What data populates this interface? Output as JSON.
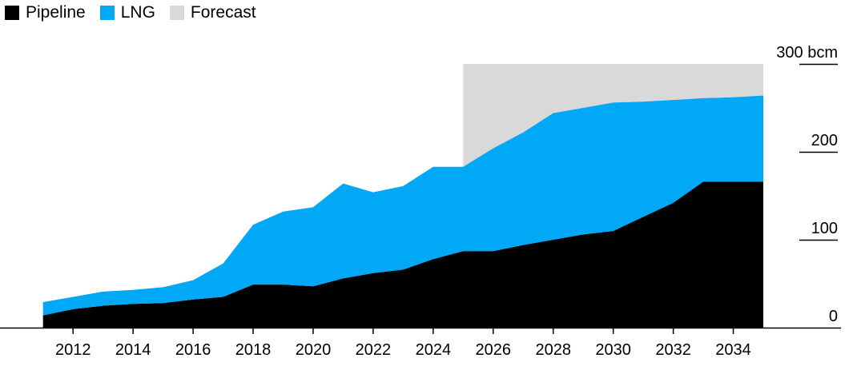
{
  "chart_data": {
    "type": "area",
    "stacked": true,
    "legend": [
      {
        "name": "Pipeline",
        "color": "#000000"
      },
      {
        "name": "LNG",
        "color": "#00a8f5"
      },
      {
        "name": "Forecast",
        "color": "#d9d9d9"
      }
    ],
    "legend_position": "top-left",
    "x": [
      2011,
      2012,
      2013,
      2014,
      2015,
      2016,
      2017,
      2018,
      2019,
      2020,
      2021,
      2022,
      2023,
      2024,
      2025,
      2026,
      2027,
      2028,
      2029,
      2030,
      2031,
      2032,
      2033,
      2034,
      2035
    ],
    "series": [
      {
        "name": "Pipeline",
        "color": "#000000",
        "values": [
          14,
          21,
          25,
          27,
          28,
          32,
          35,
          49,
          49,
          47,
          56,
          62,
          66,
          78,
          87,
          87,
          94,
          100,
          106,
          110,
          126,
          142,
          166,
          166,
          166
        ]
      },
      {
        "name": "LNG",
        "color": "#00a8f5",
        "values": [
          15,
          14,
          16,
          16,
          18,
          22,
          38,
          68,
          83,
          90,
          108,
          92,
          95,
          105,
          96,
          117,
          128,
          144,
          144,
          146,
          131,
          117,
          95,
          96,
          98
        ]
      }
    ],
    "forecast_region": {
      "x_start": 2025,
      "x_end": 2035,
      "y_top": 300,
      "color": "#d9d9d9"
    },
    "x_ticks": [
      "2012",
      "2014",
      "2016",
      "2018",
      "2020",
      "2022",
      "2024",
      "2026",
      "2028",
      "2030",
      "2032",
      "2034"
    ],
    "x_tick_values": [
      2012,
      2014,
      2016,
      2018,
      2020,
      2022,
      2024,
      2026,
      2028,
      2030,
      2032,
      2034
    ],
    "y_ticks": [
      "0",
      "100",
      "200",
      "300 bcm"
    ],
    "y_tick_values": [
      0,
      100,
      200,
      300
    ],
    "xlim": [
      2010.5,
      2035
    ],
    "ylim": [
      0,
      300
    ],
    "grid": false
  }
}
